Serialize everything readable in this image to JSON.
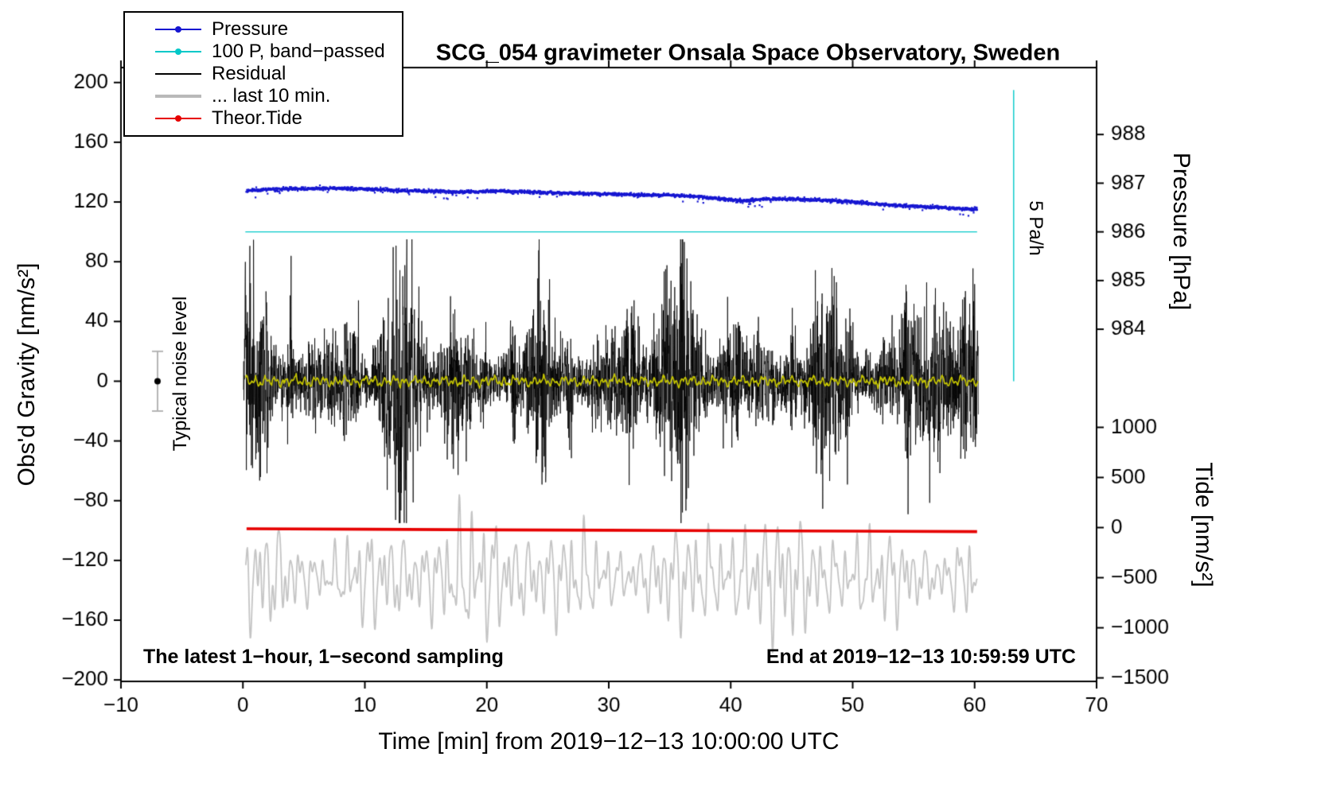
{
  "chart_data": {
    "type": "line",
    "title": "SCG_054 gravimeter Onsala Space Observatory, Sweden",
    "xlabel": "Time [min] from 2019−12−13 10:00:00 UTC",
    "x_axis": {
      "min": -10,
      "max": 70,
      "ticks": [
        -10,
        0,
        10,
        20,
        30,
        40,
        50,
        60,
        70
      ]
    },
    "y_left": {
      "label": "Obs'd Gravity [nm/s²]",
      "min": -201,
      "max": 210,
      "ticks": [
        -200,
        -160,
        -120,
        -80,
        -40,
        0,
        40,
        80,
        120,
        160,
        200
      ]
    },
    "y_right_pressure": {
      "label": "Pressure [hPa]",
      "ticks": [
        988,
        987,
        986,
        985,
        984
      ],
      "ref_value": 986,
      "ref_g": 100,
      "g_per_unit": 32.6
    },
    "y_right_tide": {
      "label": "Tide [nm/s²]",
      "ticks": [
        1000,
        500,
        0,
        -500,
        -1000,
        -1500
      ],
      "ref_value": 0,
      "ref_g": -98,
      "g_per_unit": 0.0671
    },
    "legend": {
      "items": [
        {
          "label": "Pressure",
          "color": "#1616d1",
          "style": "dot-line"
        },
        {
          "label": "100 P, band−passed",
          "color": "#00c8c8",
          "style": "dot-line"
        },
        {
          "label": "Residual",
          "color": "#000000",
          "style": "line"
        },
        {
          "label": "... last 10 min.",
          "color": "#b9b9b9",
          "style": "line-thick"
        },
        {
          "label": "Theor.Tide",
          "color": "#e60000",
          "style": "dot-line"
        }
      ]
    },
    "annotations": {
      "noise_label": "Typical noise level",
      "rate_label": "5 Pa/h",
      "bottom_left": "The latest 1−hour, 1−second sampling",
      "bottom_right": "End at 2019−12−13 10:59:59 UTC"
    },
    "series": {
      "pressure": {
        "label": "Pressure",
        "color": "#1616d1",
        "style": "dots",
        "n_dots": 2600,
        "dot_jitter": 0.55,
        "points": [
          [
            0.3,
            127.5
          ],
          [
            2,
            128.5
          ],
          [
            5,
            129.0
          ],
          [
            8,
            129.2
          ],
          [
            12,
            128.0
          ],
          [
            15,
            127.3
          ],
          [
            18,
            126.7
          ],
          [
            21,
            127.3
          ],
          [
            24,
            126.6
          ],
          [
            27,
            125.8
          ],
          [
            30,
            125.3
          ],
          [
            33,
            124.8
          ],
          [
            36,
            124.4
          ],
          [
            38,
            123.0
          ],
          [
            40,
            121.5
          ],
          [
            41,
            120.6
          ],
          [
            42.5,
            121.8
          ],
          [
            44,
            122.2
          ],
          [
            46,
            121.6
          ],
          [
            48,
            121.0
          ],
          [
            50,
            120.2
          ],
          [
            52,
            118.6
          ],
          [
            54,
            117.6
          ],
          [
            56,
            116.6
          ],
          [
            58,
            115.9
          ],
          [
            60.2,
            115.1
          ]
        ]
      },
      "pressure_band_passed": {
        "label": "100 P, band−passed",
        "color": "#00c8c8",
        "width": 1.4,
        "points": [
          [
            0.2,
            100
          ],
          [
            60.2,
            100
          ]
        ]
      },
      "pressure_rate_bar": {
        "color": "#00c8c8",
        "width": 1.4,
        "x": 63.2,
        "g_from": 0,
        "g_to": 195
      },
      "residual": {
        "label": "Residual",
        "color": "#000000",
        "n": 3600,
        "x_from": 0.05,
        "x_to": 60.3,
        "base_amp": 12,
        "burst_amp": 30,
        "clip": 95
      },
      "residual_smooth": {
        "color": "#c6c600",
        "width": 1.6,
        "amp": 2.0,
        "n": 1500,
        "x_from": 0.2,
        "x_to": 60.3
      },
      "residual_last10": {
        "label": "... last 10 min.",
        "color": "#c4c4c4",
        "width": 1.8,
        "offset": -131,
        "n": 1800,
        "x_from": 0.2,
        "x_to": 60.2
      },
      "theor_tide": {
        "label": "Theor.Tide",
        "color": "#e60000",
        "width": 3.6,
        "points": [
          [
            0.3,
            -98.8
          ],
          [
            10,
            -99.1
          ],
          [
            20,
            -99.5
          ],
          [
            30,
            -99.8
          ],
          [
            40,
            -100.1
          ],
          [
            50,
            -100.4
          ],
          [
            60.2,
            -100.7
          ]
        ]
      },
      "noise_marker": {
        "x": -7,
        "g": 0,
        "err": 20,
        "dot_color": "#000000",
        "bar_color": "#b4b4b4"
      }
    },
    "seed": 1213
  }
}
